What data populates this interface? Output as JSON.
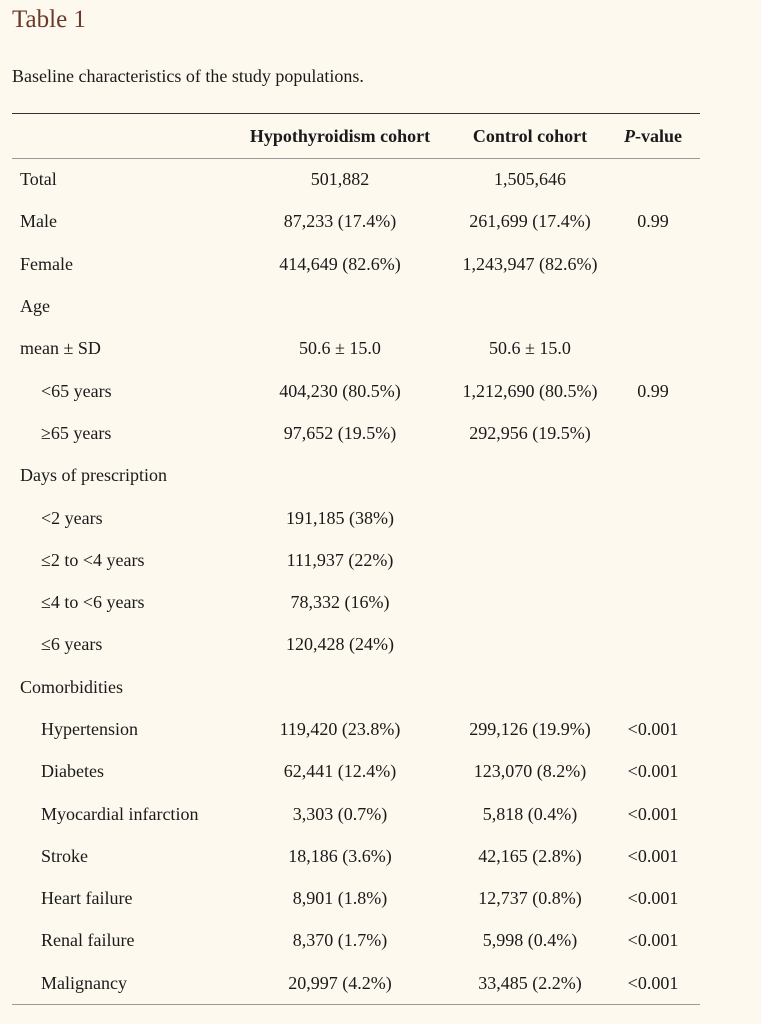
{
  "title": "Table 1",
  "caption": "Baseline characteristics of the study populations.",
  "columns": {
    "label": "",
    "hypo": "Hypothyroidism cohort",
    "control": "Control cohort",
    "p_italic": "P",
    "p_rest": "-value"
  },
  "rows": [
    {
      "label": "Total",
      "hypo": "501,882",
      "control": "1,505,646",
      "p": ""
    },
    {
      "label": "Male",
      "hypo": "87,233 (17.4%)",
      "control": "261,699 (17.4%)",
      "p": "0.99"
    },
    {
      "label": "Female",
      "hypo": "414,649 (82.6%)",
      "control": "1,243,947 (82.6%)",
      "p": ""
    },
    {
      "label": "Age",
      "hypo": "",
      "control": "",
      "p": ""
    },
    {
      "label": "mean ± SD",
      "hypo": "50.6 ± 15.0",
      "control": "50.6 ± 15.0",
      "p": ""
    },
    {
      "label": "<65 years",
      "hypo": "404,230 (80.5%)",
      "control": "1,212,690 (80.5%)",
      "p": "0.99"
    },
    {
      "label": "≥65 years",
      "hypo": "97,652 (19.5%)",
      "control": "292,956 (19.5%)",
      "p": ""
    },
    {
      "label": "Days of prescription",
      "hypo": "",
      "control": "",
      "p": ""
    },
    {
      "label": "<2 years",
      "hypo": "191,185 (38%)",
      "control": "",
      "p": ""
    },
    {
      "label": "≤2 to <4 years",
      "hypo": "111,937 (22%)",
      "control": "",
      "p": ""
    },
    {
      "label": "≤4 to <6 years",
      "hypo": "78,332 (16%)",
      "control": "",
      "p": ""
    },
    {
      "label": "≤6 years",
      "hypo": "120,428 (24%)",
      "control": "",
      "p": ""
    },
    {
      "label": "Comorbidities",
      "hypo": "",
      "control": "",
      "p": ""
    },
    {
      "label": "Hypertension",
      "hypo": "119,420 (23.8%)",
      "control": "299,126 (19.9%)",
      "p": "<0.001"
    },
    {
      "label": "Diabetes",
      "hypo": "62,441 (12.4%)",
      "control": "123,070 (8.2%)",
      "p": "<0.001"
    },
    {
      "label": "Myocardial infarction",
      "hypo": "3,303 (0.7%)",
      "control": "5,818 (0.4%)",
      "p": "<0.001"
    },
    {
      "label": "Stroke",
      "hypo": "18,186 (3.6%)",
      "control": "42,165 (2.8%)",
      "p": "<0.001"
    },
    {
      "label": "Heart failure",
      "hypo": "8,901 (1.8%)",
      "control": "12,737 (0.8%)",
      "p": "<0.001"
    },
    {
      "label": "Renal failure",
      "hypo": "8,370 (1.7%)",
      "control": "5,998 (0.4%)",
      "p": "<0.001"
    },
    {
      "label": "Malignancy",
      "hypo": "20,997 (4.2%)",
      "control": "33,485 (2.2%)",
      "p": "<0.001"
    }
  ]
}
